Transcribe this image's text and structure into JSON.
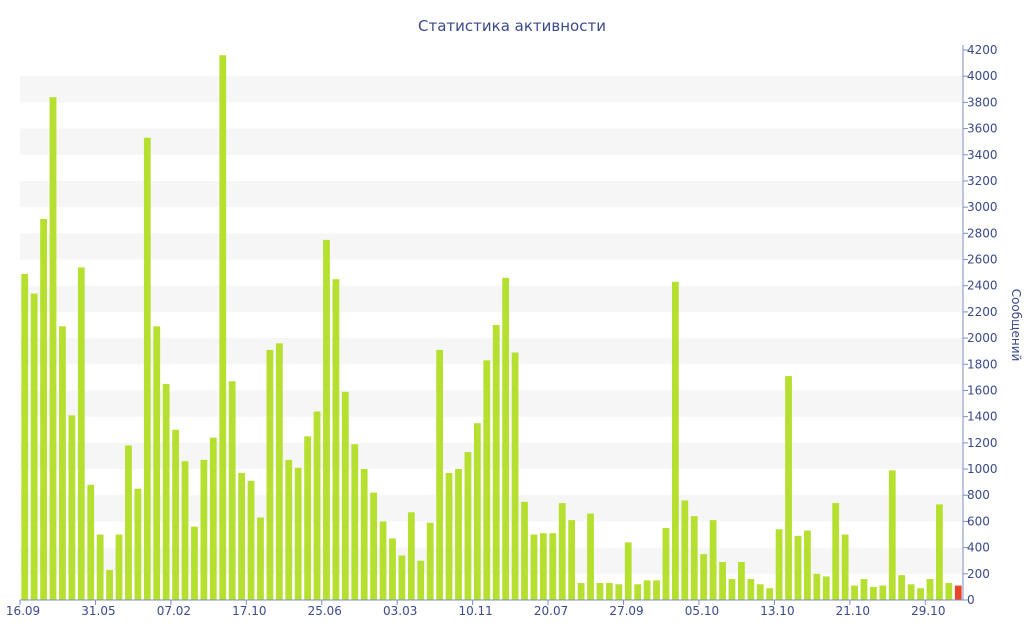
{
  "chart_data": {
    "type": "bar",
    "title": "Статистика активности",
    "ylabel": "Сообщений",
    "xlabel": "",
    "ylim": [
      0,
      4200
    ],
    "y_ticks": [
      0,
      200,
      400,
      600,
      800,
      1000,
      1200,
      1400,
      1600,
      1800,
      2000,
      2200,
      2400,
      2600,
      2800,
      3000,
      3200,
      3400,
      3600,
      3800,
      4000,
      4200
    ],
    "y_axis_side": "right",
    "grid": "alternating horizontal bands",
    "x_tick_labels": [
      {
        "label": "16.09",
        "index": 0
      },
      {
        "label": "31.05",
        "index": 8
      },
      {
        "label": "07.02",
        "index": 16
      },
      {
        "label": "17.10",
        "index": 24
      },
      {
        "label": "25.06",
        "index": 32
      },
      {
        "label": "03.03",
        "index": 40
      },
      {
        "label": "10.11",
        "index": 48
      },
      {
        "label": "20.07",
        "index": 56
      },
      {
        "label": "27.09",
        "index": 64
      },
      {
        "label": "05.10",
        "index": 72
      },
      {
        "label": "13.10",
        "index": 80
      },
      {
        "label": "21.10",
        "index": 88
      },
      {
        "label": "29.10",
        "index": 96
      }
    ],
    "values": [
      2490,
      2340,
      2910,
      3840,
      2090,
      1410,
      2540,
      880,
      500,
      230,
      500,
      1180,
      850,
      3530,
      2090,
      1650,
      1300,
      1060,
      560,
      1070,
      1240,
      4160,
      1670,
      970,
      910,
      630,
      1910,
      1960,
      1070,
      1010,
      1250,
      1440,
      2750,
      2450,
      1590,
      1190,
      1000,
      820,
      600,
      470,
      340,
      670,
      300,
      590,
      1910,
      970,
      1000,
      1130,
      1350,
      1830,
      2100,
      2460,
      1890,
      750,
      500,
      510,
      510,
      740,
      610,
      130,
      660,
      130,
      130,
      120,
      440,
      120,
      150,
      150,
      550,
      2430,
      760,
      640,
      350,
      610,
      290,
      160,
      290,
      160,
      120,
      90,
      540,
      1710,
      490,
      530,
      200,
      180,
      740,
      500,
      110,
      160,
      100,
      110,
      990,
      190,
      120,
      90,
      160,
      730,
      130,
      110
    ],
    "bar_color": "#b5e030",
    "highlight_index": 99,
    "highlight_color": "#e8462a"
  },
  "colors": {
    "axis": "#7e8ec4",
    "text": "#3a4a8a",
    "band": "#f6f6f6"
  }
}
